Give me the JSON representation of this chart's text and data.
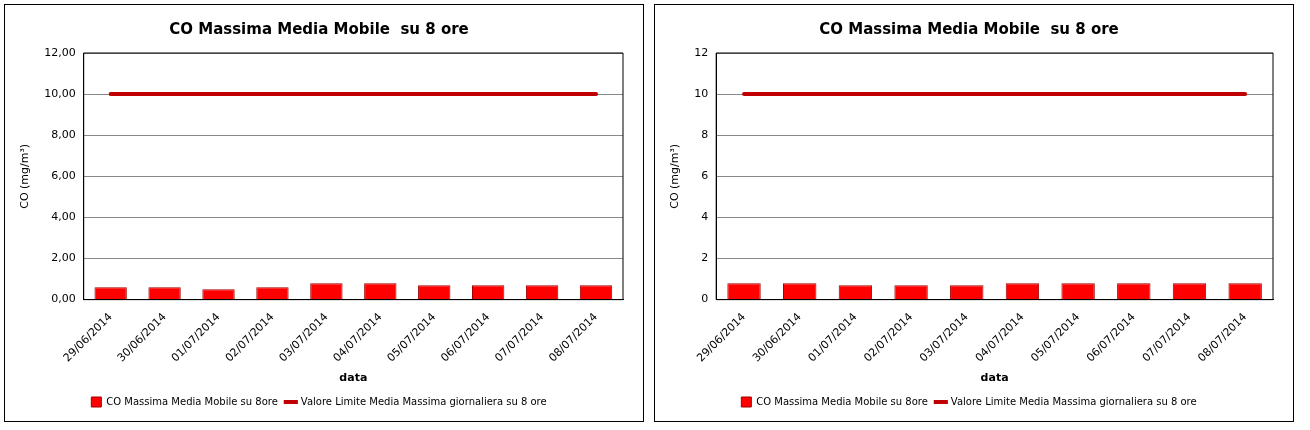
{
  "chart_data": [
    {
      "type": "bar",
      "title": "CO Massima Media Mobile  su 8 ore",
      "xlabel": "data",
      "ylabel": "CO (mg/m³)",
      "categories": [
        "29/06/2014",
        "30/06/2014",
        "01/07/2014",
        "02/07/2014",
        "03/07/2014",
        "04/07/2014",
        "05/07/2014",
        "06/07/2014",
        "07/07/2014",
        "08/07/2014"
      ],
      "series": [
        {
          "name": "CO Massima Media Mobile su 8ore",
          "color": "#ff0000",
          "values": [
            0.6,
            0.6,
            0.5,
            0.6,
            0.8,
            0.8,
            0.7,
            0.7,
            0.7,
            0.7
          ]
        },
        {
          "name": "Valore Limite Media Massima giornaliera su 8 ore",
          "type": "line",
          "color": "#c00000",
          "values": [
            10,
            10,
            10,
            10,
            10,
            10,
            10,
            10,
            10,
            10
          ]
        }
      ],
      "ylim": [
        0,
        12
      ],
      "yticks": [
        {
          "value": 0,
          "label": "0,00"
        },
        {
          "value": 2,
          "label": "2,00"
        },
        {
          "value": 4,
          "label": "4,00"
        },
        {
          "value": 6,
          "label": "6,00"
        },
        {
          "value": 8,
          "label": "8,00"
        },
        {
          "value": 10,
          "label": "10,00"
        },
        {
          "value": 12,
          "label": "12,00"
        }
      ],
      "grid": "y",
      "legend": "bottom",
      "marker": "none"
    },
    {
      "type": "bar",
      "title": "CO Massima Media Mobile  su 8 ore",
      "xlabel": "data",
      "ylabel": "CO (mg/m³)",
      "categories": [
        "29/06/2014",
        "30/06/2014",
        "01/07/2014",
        "02/07/2014",
        "03/07/2014",
        "04/07/2014",
        "05/07/2014",
        "06/07/2014",
        "07/07/2014",
        "08/07/2014"
      ],
      "series": [
        {
          "name": "CO Massima Media Mobile su 8ore",
          "color": "#ff0000",
          "values": [
            0.8,
            0.8,
            0.7,
            0.7,
            0.7,
            0.8,
            0.8,
            0.8,
            0.8,
            0.8
          ]
        },
        {
          "name": "Valore Limite Media Massima giornaliera su 8 ore",
          "type": "line",
          "color": "#c00000",
          "values": [
            10,
            10,
            10,
            10,
            10,
            10,
            10,
            10,
            10,
            10
          ]
        }
      ],
      "ylim": [
        0,
        12
      ],
      "yticks": [
        0,
        2,
        4,
        6,
        8,
        10,
        12
      ],
      "grid": "y",
      "legend": "bottom",
      "marker": "none"
    }
  ]
}
